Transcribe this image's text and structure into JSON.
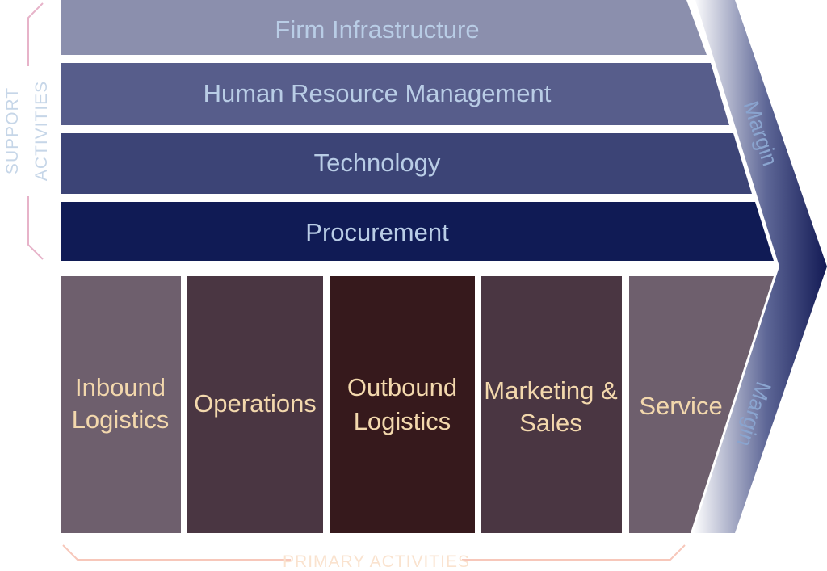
{
  "diagram": {
    "support_label_1": "SUPPORT",
    "support_label_2": "ACTIVITIES",
    "primary_label": "PRIMARY ACTIVITIES",
    "margin_top": "Margin",
    "margin_bottom": "Margin",
    "support_activities": [
      {
        "label": "Firm Infrastructure",
        "color": "#8b8fad"
      },
      {
        "label": "Human Resource Management",
        "color": "#575d8b"
      },
      {
        "label": "Technology",
        "color": "#3c4476"
      },
      {
        "label": "Procurement",
        "color": "#101b55"
      }
    ],
    "primary_activities": [
      {
        "line1": "Inbound",
        "line2": "Logistics",
        "color": "#6e5f6d"
      },
      {
        "line1": "Operations",
        "line2": "",
        "color": "#4a3642"
      },
      {
        "line1": "Outbound",
        "line2": "Logistics",
        "color": "#36191c"
      },
      {
        "line1": "Marketing &",
        "line2": "Sales",
        "color": "#4a3642"
      },
      {
        "line1": "Service",
        "line2": "",
        "color": "#6e5f6d"
      }
    ],
    "colors": {
      "support_bracket": "#e7b3c9",
      "support_text": "#c6d6e8",
      "primary_bracket": "#f7c7ba",
      "primary_text": "#fae3cf",
      "arrow_light": "#ffffff",
      "arrow_dark": "#131a55"
    }
  }
}
